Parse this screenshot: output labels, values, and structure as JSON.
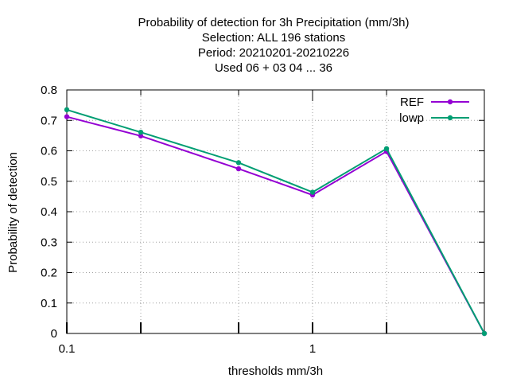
{
  "chart_data": {
    "type": "line",
    "title_lines": [
      "Probability of detection  for 3h Precipitation (mm/3h)",
      "Selection: ALL    196 stations",
      "Period: 20210201-20210226",
      "Used  06  + 03 04 ... 36"
    ],
    "xlabel": "thresholds mm/3h",
    "ylabel": "Probability of detection",
    "x_scale": "log",
    "xlim": [
      0.1,
      5
    ],
    "ylim": [
      0,
      0.8
    ],
    "x_ticks": [
      0.1,
      1
    ],
    "x_tick_labels": [
      "0.1",
      "1"
    ],
    "x_minor_ticks": [
      0.2,
      0.5,
      2
    ],
    "y_ticks": [
      0,
      0.1,
      0.2,
      0.3,
      0.4,
      0.5,
      0.6,
      0.7,
      0.8
    ],
    "y_tick_labels": [
      "0",
      "0.1",
      "0.2",
      "0.3",
      "0.4",
      "0.5",
      "0.6",
      "0.7",
      "0.8"
    ],
    "grid": true,
    "legend_position": "top-right",
    "x": [
      0.1,
      0.2,
      0.5,
      1,
      2,
      5
    ],
    "series": [
      {
        "name": "REF",
        "color": "#9400d3",
        "values": [
          0.712,
          0.649,
          0.541,
          0.455,
          0.598,
          0.0
        ]
      },
      {
        "name": "lowp",
        "color": "#009e73",
        "values": [
          0.735,
          0.661,
          0.561,
          0.464,
          0.607,
          0.0
        ]
      }
    ]
  }
}
